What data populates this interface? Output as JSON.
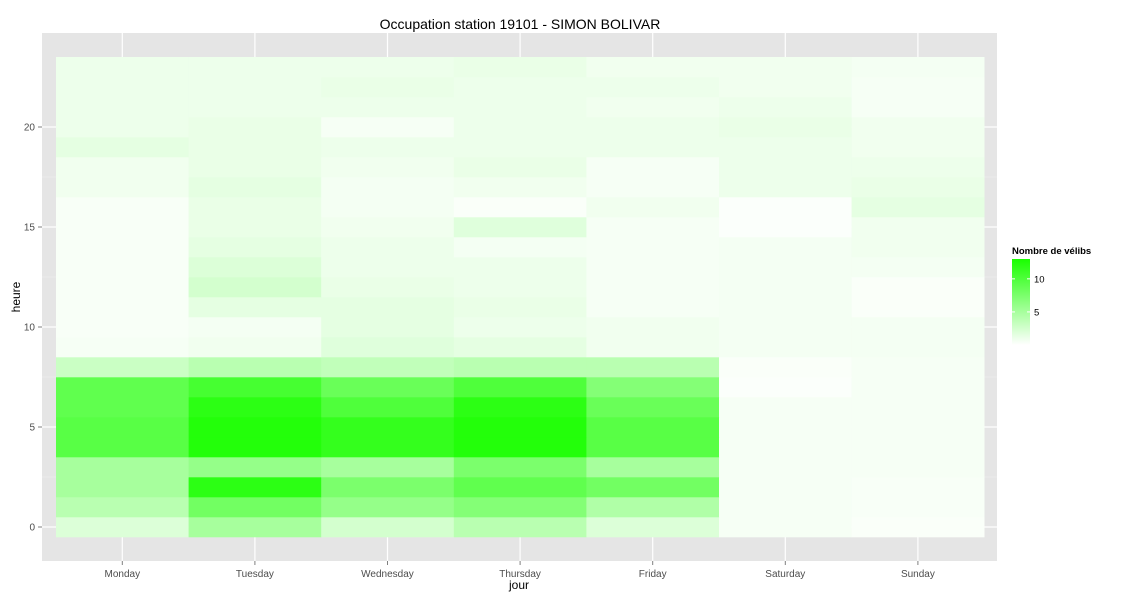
{
  "chart_data": {
    "type": "heatmap",
    "title": "Occupation station 19101 - SIMON BOLIVAR",
    "xlabel": "jour",
    "ylabel": "heure",
    "x_categories": [
      "Monday",
      "Tuesday",
      "Wednesday",
      "Thursday",
      "Friday",
      "Saturday",
      "Sunday"
    ],
    "y_values": [
      0,
      1,
      2,
      3,
      4,
      5,
      6,
      7,
      8,
      9,
      10,
      11,
      12,
      13,
      14,
      15,
      16,
      17,
      18,
      19,
      20,
      21,
      22,
      23
    ],
    "ylim": [
      -0.5,
      23.5
    ],
    "y_ticks": [
      0,
      5,
      10,
      15,
      20
    ],
    "grid": true,
    "color_scale": {
      "low": "#ffffff",
      "high": "#1aff00",
      "min": 0,
      "max": 13,
      "legend_ticks": [
        5,
        10
      ]
    },
    "legend": {
      "title": "Nombre de vélibs",
      "position": "right"
    },
    "values": [
      [
        2.0,
        5.0,
        2.5,
        4.0,
        2.0,
        0.5,
        0.3
      ],
      [
        4.0,
        8.0,
        6.0,
        7.0,
        4.5,
        0.5,
        0.4
      ],
      [
        5.0,
        12.0,
        7.5,
        9.0,
        8.0,
        0.5,
        0.4
      ],
      [
        5.0,
        6.0,
        5.0,
        7.5,
        5.0,
        0.5,
        0.5
      ],
      [
        9.5,
        12.5,
        11.5,
        12.5,
        9.5,
        0.5,
        0.5
      ],
      [
        9.5,
        12.5,
        11.5,
        12.5,
        9.5,
        0.5,
        0.5
      ],
      [
        9.0,
        12.0,
        10.0,
        12.0,
        8.5,
        0.5,
        0.5
      ],
      [
        9.0,
        10.5,
        8.5,
        10.0,
        7.0,
        0.2,
        0.5
      ],
      [
        3.0,
        4.0,
        3.5,
        4.0,
        4.0,
        0.3,
        0.5
      ],
      [
        0.5,
        0.8,
        1.8,
        1.5,
        0.8,
        0.6,
        0.6
      ],
      [
        0.4,
        0.6,
        1.5,
        1.0,
        0.8,
        0.6,
        0.6
      ],
      [
        0.4,
        1.5,
        1.5,
        1.2,
        0.5,
        0.6,
        0.3
      ],
      [
        0.4,
        2.5,
        1.2,
        1.0,
        0.5,
        0.6,
        0.3
      ],
      [
        0.4,
        2.0,
        1.0,
        1.0,
        0.5,
        0.6,
        0.6
      ],
      [
        0.4,
        1.5,
        1.0,
        0.6,
        0.5,
        0.6,
        0.8
      ],
      [
        0.4,
        1.2,
        0.8,
        1.8,
        0.5,
        0.2,
        0.8
      ],
      [
        0.4,
        1.2,
        0.6,
        0.3,
        0.8,
        0.2,
        1.5
      ],
      [
        0.8,
        1.5,
        0.6,
        0.8,
        0.5,
        1.0,
        1.2
      ],
      [
        0.8,
        1.2,
        0.8,
        1.2,
        0.5,
        1.0,
        1.0
      ],
      [
        1.5,
        1.2,
        1.0,
        1.0,
        1.0,
        1.0,
        0.8
      ],
      [
        1.0,
        1.2,
        0.5,
        1.0,
        1.0,
        1.2,
        0.8
      ],
      [
        1.0,
        1.0,
        1.0,
        1.0,
        0.8,
        1.0,
        0.5
      ],
      [
        1.0,
        1.0,
        1.2,
        1.0,
        1.0,
        0.8,
        0.5
      ],
      [
        1.0,
        1.0,
        1.0,
        1.2,
        0.8,
        0.8,
        0.6
      ]
    ]
  }
}
